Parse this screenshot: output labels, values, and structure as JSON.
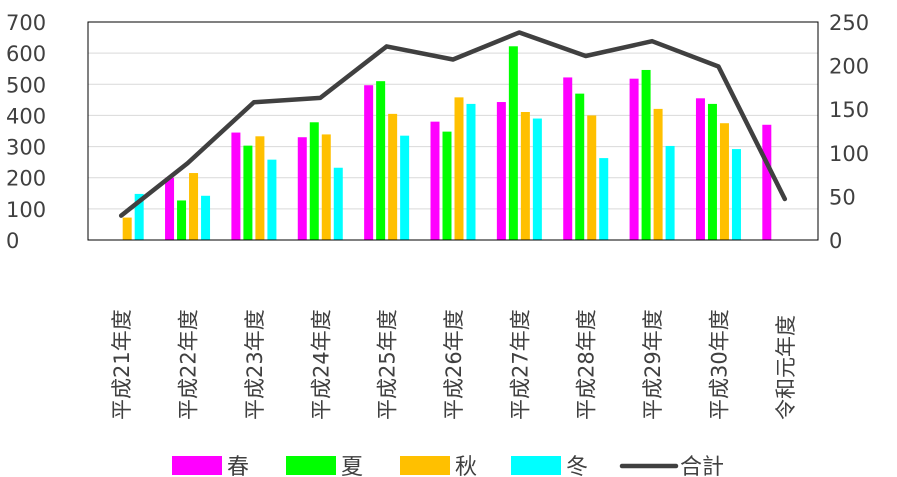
{
  "chart_data": {
    "type": "bar",
    "categories": [
      "平成21年度",
      "平成22年度",
      "平成23年度",
      "平成24年度",
      "平成25年度",
      "平成26年度",
      "平成27年度",
      "平成28年度",
      "平成29年度",
      "平成30年度",
      "令和元年度"
    ],
    "series": [
      {
        "name": "春",
        "color": "#FF00FF",
        "axis": "left",
        "type": "bar",
        "values": [
          null,
          200,
          345,
          330,
          497,
          380,
          443,
          522,
          518,
          455,
          370
        ]
      },
      {
        "name": "夏",
        "color": "#00FF00",
        "axis": "left",
        "type": "bar",
        "values": [
          null,
          127,
          303,
          378,
          510,
          348,
          622,
          470,
          546,
          437,
          null
        ]
      },
      {
        "name": "秋",
        "color": "#FFC000",
        "axis": "left",
        "type": "bar",
        "values": [
          72,
          215,
          333,
          339,
          405,
          458,
          411,
          400,
          421,
          375,
          null
        ]
      },
      {
        "name": "冬",
        "color": "#00FFFF",
        "axis": "left",
        "type": "bar",
        "values": [
          148,
          142,
          258,
          232,
          335,
          437,
          390,
          263,
          302,
          292,
          null
        ]
      },
      {
        "name": "合計",
        "color": "#404040",
        "axis": "right",
        "type": "line",
        "values": [
          28,
          88,
          158,
          163,
          222,
          207,
          238,
          211,
          228,
          199,
          47
        ]
      }
    ],
    "left_axis": {
      "min": 0,
      "max": 700,
      "step": 100,
      "ticks": [
        "0",
        "100",
        "200",
        "300",
        "400",
        "500",
        "600",
        "700"
      ]
    },
    "right_axis": {
      "min": 0,
      "max": 250,
      "step": 50,
      "ticks": [
        "0",
        "50",
        "100",
        "150",
        "200",
        "250"
      ]
    },
    "grid": true,
    "legend_position": "bottom"
  }
}
